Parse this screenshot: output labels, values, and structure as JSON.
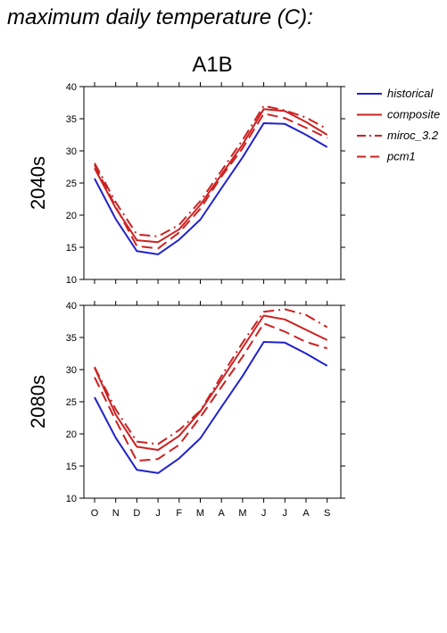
{
  "page": {
    "title": "maximum daily temperature (C):"
  },
  "chart_data": {
    "type": "line",
    "scenario_title": "A1B",
    "categories": [
      "O",
      "N",
      "D",
      "J",
      "F",
      "M",
      "A",
      "M",
      "J",
      "J",
      "A",
      "S"
    ],
    "ylim": [
      10,
      40
    ],
    "yticks": [
      10,
      15,
      20,
      25,
      30,
      35,
      40
    ],
    "legend_placement": "right",
    "legend": [
      {
        "name": "historical",
        "color": "#2222cc",
        "dash": "solid"
      },
      {
        "name": "composite",
        "color": "#cc2222",
        "dash": "solid"
      },
      {
        "name": "miroc_3.2",
        "color": "#cc2222",
        "dash": "dashdot"
      },
      {
        "name": "pcm1",
        "color": "#cc2222",
        "dash": "dashed"
      }
    ],
    "panels": [
      {
        "ylabel": "2040s",
        "series": [
          {
            "name": "historical",
            "values": [
              25.7,
              19.4,
              14.4,
              13.9,
              16.2,
              19.3,
              24.2,
              29.0,
              34.3,
              34.2,
              32.5,
              30.6
            ]
          },
          {
            "name": "composite",
            "values": [
              27.3,
              21.1,
              16.1,
              15.8,
              17.8,
              21.6,
              26.3,
              31.0,
              36.5,
              36.2,
              34.5,
              32.5
            ]
          },
          {
            "name": "miroc_3.2",
            "values": [
              28.1,
              22.0,
              17.0,
              16.7,
              18.5,
              22.2,
              26.9,
              31.7,
              37.0,
              36.3,
              35.2,
              33.4
            ]
          },
          {
            "name": "pcm1",
            "values": [
              27.8,
              21.3,
              15.2,
              14.8,
              17.3,
              21.0,
              26.0,
              30.4,
              35.8,
              35.1,
              33.6,
              32.0
            ]
          }
        ]
      },
      {
        "ylabel": "2080s",
        "series": [
          {
            "name": "historical",
            "values": [
              25.7,
              19.4,
              14.4,
              13.9,
              16.2,
              19.3,
              24.2,
              29.0,
              34.3,
              34.2,
              32.5,
              30.6
            ]
          },
          {
            "name": "composite",
            "values": [
              30.3,
              23.0,
              18.0,
              17.5,
              19.7,
              23.5,
              28.4,
              33.4,
              38.4,
              37.8,
              36.2,
              34.6
            ]
          },
          {
            "name": "miroc_3.2",
            "values": [
              30.4,
              23.8,
              18.8,
              18.4,
              20.6,
              23.6,
              29.0,
              34.2,
              39.0,
              39.4,
              38.5,
              36.6
            ]
          },
          {
            "name": "pcm1",
            "values": [
              28.8,
              22.1,
              15.8,
              16.1,
              18.3,
              22.6,
              27.3,
              32.0,
              37.2,
              35.9,
              34.3,
              33.3
            ]
          }
        ]
      }
    ]
  }
}
